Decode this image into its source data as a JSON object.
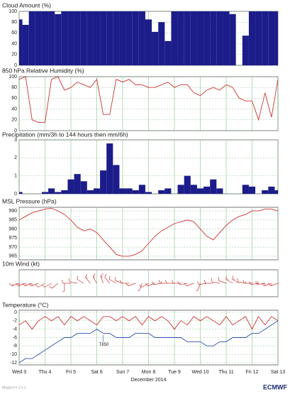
{
  "chart_data": [
    {
      "type": "bar",
      "title": "Cloud Amount (%)",
      "color": "#1c1c8a",
      "x": [
        0,
        6,
        12,
        18,
        24,
        30,
        36,
        42,
        48,
        54,
        60,
        66,
        72,
        78,
        84,
        90,
        96,
        102,
        108,
        114,
        120,
        126,
        132,
        138,
        144,
        150,
        156,
        162,
        168,
        174,
        180,
        186,
        192,
        198,
        204,
        210,
        216,
        222,
        228,
        234,
        240
      ],
      "values": [
        85,
        75,
        100,
        100,
        100,
        100,
        95,
        100,
        100,
        100,
        100,
        100,
        100,
        100,
        100,
        100,
        100,
        100,
        100,
        100,
        85,
        62,
        80,
        45,
        100,
        100,
        100,
        100,
        100,
        100,
        100,
        100,
        100,
        95,
        0,
        55,
        100,
        100,
        100,
        100,
        100
      ],
      "xlim": [
        0,
        240
      ],
      "xticks": [
        0,
        24,
        48,
        72,
        96,
        120,
        144,
        168,
        192,
        216,
        240
      ],
      "ylim": [
        0,
        100
      ],
      "yticks": [
        0,
        20,
        40,
        60,
        80,
        100
      ],
      "grid": true
    },
    {
      "type": "line",
      "title": "850 hPa Relative Humidity (%)",
      "color": "#cc3333",
      "x": [
        0,
        6,
        12,
        18,
        24,
        30,
        36,
        42,
        48,
        54,
        60,
        66,
        72,
        78,
        84,
        90,
        96,
        102,
        108,
        114,
        120,
        126,
        132,
        138,
        144,
        150,
        156,
        162,
        168,
        174,
        180,
        186,
        192,
        198,
        204,
        210,
        216,
        222,
        228,
        234,
        240
      ],
      "values": [
        95,
        100,
        20,
        15,
        15,
        95,
        100,
        75,
        80,
        90,
        85,
        80,
        95,
        30,
        30,
        95,
        90,
        95,
        85,
        85,
        80,
        80,
        85,
        90,
        80,
        85,
        85,
        70,
        65,
        75,
        80,
        75,
        85,
        80,
        60,
        55,
        55,
        20,
        70,
        25,
        95
      ],
      "xlim": [
        0,
        240
      ],
      "xticks": [
        0,
        24,
        48,
        72,
        96,
        120,
        144,
        168,
        192,
        216,
        240
      ],
      "ylim": [
        0,
        100
      ],
      "yticks": [
        0,
        20,
        40,
        60,
        80,
        100
      ],
      "grid": true
    },
    {
      "type": "bar",
      "title": "Precipitation (mm/3h to 144 hours then mm/6h)",
      "color": "#1c1c8a",
      "x": [
        0,
        6,
        12,
        18,
        24,
        30,
        36,
        42,
        48,
        54,
        60,
        66,
        72,
        78,
        84,
        90,
        96,
        102,
        108,
        114,
        120,
        126,
        132,
        138,
        144,
        150,
        156,
        162,
        168,
        174,
        180,
        186,
        192,
        198,
        204,
        210,
        216,
        222,
        228,
        234,
        240
      ],
      "values": [
        0.1,
        0,
        0,
        0,
        0.1,
        0.3,
        0.1,
        0.2,
        0.8,
        1.1,
        0.7,
        0.2,
        0.3,
        1.3,
        2.8,
        1.6,
        0.3,
        0.3,
        0.2,
        0.5,
        0.1,
        0,
        0.2,
        0.3,
        0,
        0.5,
        1.0,
        0.5,
        0.3,
        0.4,
        0.8,
        0.3,
        0,
        0,
        0,
        0.5,
        0.4,
        0,
        0.2,
        0.4,
        0.2
      ],
      "xlim": [
        0,
        240
      ],
      "xticks": [
        0,
        24,
        48,
        72,
        96,
        120,
        144,
        168,
        192,
        216,
        240
      ],
      "ylim": [
        0,
        3
      ],
      "yticks": [
        0,
        1,
        2,
        3
      ],
      "grid": true
    },
    {
      "type": "line",
      "title": "MSL Pressure (hPa)",
      "color": "#cc3333",
      "x": [
        0,
        6,
        12,
        18,
        24,
        30,
        36,
        42,
        48,
        54,
        60,
        66,
        72,
        78,
        84,
        90,
        96,
        102,
        108,
        114,
        120,
        126,
        132,
        138,
        144,
        150,
        156,
        162,
        168,
        174,
        180,
        186,
        192,
        198,
        204,
        210,
        216,
        222,
        228,
        234,
        240
      ],
      "values": [
        985,
        987,
        989,
        990,
        991,
        991.5,
        990,
        988,
        985,
        981,
        979,
        980,
        978,
        974,
        970,
        966,
        965,
        965,
        966,
        968,
        972,
        976,
        979,
        981,
        983,
        984,
        985,
        984,
        980,
        976,
        974,
        978,
        982,
        985,
        987,
        988,
        990,
        990,
        991,
        991,
        990
      ],
      "xlim": [
        0,
        240
      ],
      "xticks": [
        0,
        24,
        48,
        72,
        96,
        120,
        144,
        168,
        192,
        216,
        240
      ],
      "ylim": [
        963,
        992
      ],
      "yticks": [
        965,
        970,
        975,
        980,
        985,
        990
      ],
      "grid": true
    },
    {
      "type": "barb",
      "title": "10m Wind (kt)",
      "color": "#cc3333",
      "x": [
        0,
        6,
        12,
        18,
        24,
        30,
        36,
        42,
        48,
        54,
        60,
        66,
        72,
        78,
        84,
        90,
        96,
        102,
        108,
        114,
        120,
        126,
        132,
        138,
        144,
        150,
        156,
        162,
        168,
        174,
        180,
        186,
        192,
        198,
        204,
        210,
        216,
        222,
        228,
        234,
        240
      ],
      "speed": [
        15,
        15,
        15,
        15,
        10,
        10,
        10,
        5,
        10,
        10,
        10,
        15,
        15,
        15,
        10,
        10,
        10,
        10,
        10,
        5,
        10,
        10,
        10,
        15,
        10,
        10,
        10,
        10,
        5,
        10,
        10,
        10,
        10,
        15,
        15,
        10,
        15,
        15,
        20,
        20,
        15
      ],
      "direction": [
        250,
        250,
        250,
        250,
        240,
        240,
        230,
        180,
        270,
        280,
        300,
        320,
        330,
        340,
        320,
        300,
        290,
        270,
        250,
        200,
        240,
        250,
        260,
        270,
        270,
        270,
        260,
        250,
        200,
        260,
        270,
        280,
        290,
        300,
        300,
        280,
        270,
        260,
        260,
        250,
        250
      ],
      "xlim": [
        0,
        240
      ],
      "xticks": [
        0,
        24,
        48,
        72,
        96,
        120,
        144,
        168,
        192,
        216,
        240
      ],
      "grid": true
    },
    {
      "type": "line",
      "title": "Temperature (°C)",
      "annotation": "T850",
      "x": [
        0,
        6,
        12,
        18,
        24,
        30,
        36,
        42,
        48,
        54,
        60,
        66,
        72,
        78,
        84,
        90,
        96,
        102,
        108,
        114,
        120,
        126,
        132,
        138,
        144,
        150,
        156,
        162,
        168,
        174,
        180,
        186,
        192,
        198,
        204,
        210,
        216,
        222,
        228,
        234,
        240
      ],
      "series": [
        {
          "color": "#cc3333",
          "values": [
            -3,
            -2,
            -4,
            -2,
            -1,
            -2,
            -1,
            -3,
            -1,
            -2,
            -1,
            -2,
            -3,
            -1,
            -1,
            -2,
            -1,
            -2,
            -1,
            -3,
            -1,
            -2,
            -1,
            -2,
            -4,
            -2,
            -3,
            -1,
            -2,
            -1,
            -2,
            -3,
            -1,
            -3,
            -2,
            -1,
            -4,
            -1,
            -3,
            -1,
            -2
          ]
        },
        {
          "color": "#3050b0",
          "values": [
            -12,
            -11,
            -11,
            -10,
            -9,
            -8,
            -7,
            -6,
            -6,
            -5,
            -5,
            -5,
            -4,
            -5,
            -5,
            -6,
            -6,
            -6,
            -5,
            -5,
            -5,
            -6,
            -6,
            -6,
            -6,
            -6,
            -7,
            -7,
            -7,
            -8,
            -8,
            -7,
            -7,
            -6,
            -6,
            -6,
            -5,
            -5,
            -4,
            -3,
            -2
          ]
        }
      ],
      "xlim": [
        0,
        240
      ],
      "xticks": [
        {
          "value": 0,
          "label": "Wed 3"
        },
        {
          "value": 24,
          "label": "Thu 4"
        },
        {
          "value": 48,
          "label": "Fri 5"
        },
        {
          "value": 72,
          "label": "Sat 6"
        },
        {
          "value": 96,
          "label": "Sun 7",
          "color": "#cc0000"
        },
        {
          "value": 120,
          "label": "Mon 8"
        },
        {
          "value": 144,
          "label": "Tue 9"
        },
        {
          "value": 168,
          "label": "Wed 10"
        },
        {
          "value": 192,
          "label": "Thu 11"
        },
        {
          "value": 216,
          "label": "Fri 12"
        },
        {
          "value": 240,
          "label": "Sat 13"
        }
      ],
      "xlabel": "December 2014",
      "ylim": [
        -12.5,
        0.5
      ],
      "yticks": [
        -12,
        -10,
        -8,
        -6,
        -4,
        -2,
        0
      ],
      "grid": true
    }
  ],
  "footer": "Magics++ 2.x.x",
  "logo": "ECMWF"
}
